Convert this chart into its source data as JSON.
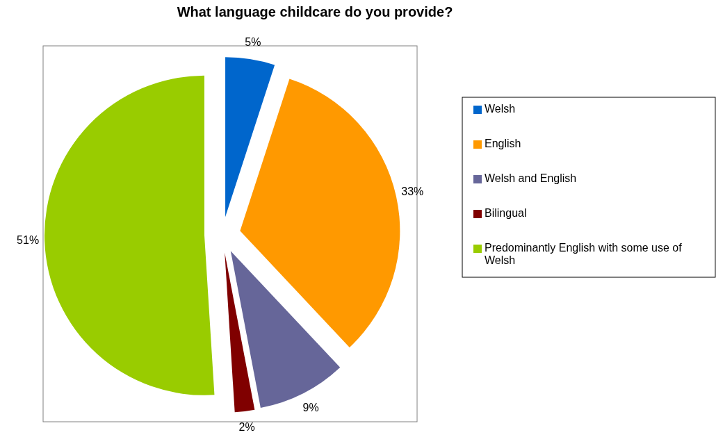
{
  "chart_data": {
    "type": "pie",
    "title": "What language childcare do you provide?",
    "categories": [
      "Welsh",
      "English",
      "Welsh and English",
      "Bilingual",
      "Predominantly English with some use of Welsh"
    ],
    "values": [
      5,
      33,
      9,
      2,
      51
    ],
    "colors": [
      "#0066cc",
      "#ff9900",
      "#666699",
      "#800000",
      "#99cc00"
    ],
    "value_labels": [
      "5%",
      "33%",
      "9%",
      "2%",
      "51%"
    ],
    "legend": "right"
  }
}
